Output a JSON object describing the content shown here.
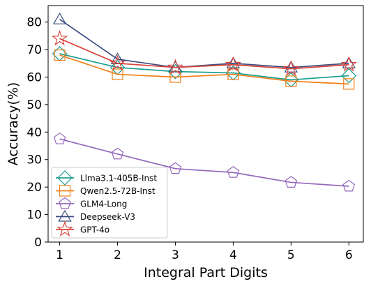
{
  "chart_data": {
    "type": "line",
    "title": "",
    "xlabel": "Integral Part Digits",
    "ylabel": "Accuracy(%)",
    "x": [
      1,
      2,
      3,
      4,
      5,
      6
    ],
    "xlim": [
      0.8,
      6.25
    ],
    "ylim": [
      0,
      86
    ],
    "yticks": [
      0,
      10,
      20,
      30,
      40,
      50,
      60,
      70,
      80
    ],
    "xticks": [
      1,
      2,
      3,
      4,
      5,
      6
    ],
    "grid": false,
    "legend_position": "lower-left",
    "series": [
      {
        "name": "Llma3.1-405B-Inst",
        "color": "#1a9e8f",
        "marker": "diamond",
        "values": [
          68.5,
          63.5,
          62.0,
          61.5,
          59.0,
          60.5
        ]
      },
      {
        "name": "Qwen2.5-72B-Inst",
        "color": "#f07f18",
        "marker": "square",
        "values": [
          68.0,
          61.0,
          60.0,
          61.0,
          58.5,
          57.5
        ]
      },
      {
        "name": "GLM4-Long",
        "color": "#9467bd",
        "marker": "pentagon",
        "values": [
          37.5,
          32.0,
          26.7,
          25.3,
          21.7,
          20.3
        ]
      },
      {
        "name": "Deepseek-V3",
        "color": "#3b4f80",
        "marker": "triangle",
        "values": [
          81.0,
          66.5,
          63.5,
          65.0,
          63.5,
          65.0
        ]
      },
      {
        "name": "GPT-4o",
        "color": "#d9443c",
        "marker": "star",
        "values": [
          74.0,
          65.0,
          63.5,
          64.5,
          63.0,
          64.5
        ]
      }
    ]
  }
}
